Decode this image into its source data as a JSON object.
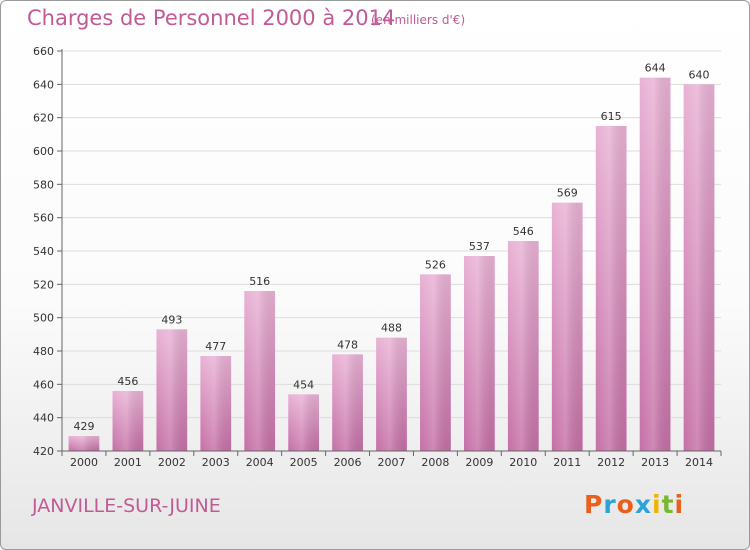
{
  "title": "Charges de Personnel 2000 à 2014",
  "subtitle": "(en milliers d'€)",
  "commune": "JANVILLE-SUR-JUINE",
  "logo": {
    "text": "Proxiti",
    "colors": [
      "#e8601c",
      "#2aa4d8",
      "#e8601c",
      "#2aa4d8",
      "#f0b400",
      "#7cb82f",
      "#e8601c"
    ]
  },
  "colors": {
    "accent": "#c15a95",
    "bar_light": "#e9b2d5",
    "bar_dark": "#c56fa6",
    "grid": "#dcdcdc",
    "axis_text": "#333333"
  },
  "chart_data": {
    "type": "bar",
    "categories": [
      "2000",
      "2001",
      "2002",
      "2003",
      "2004",
      "2005",
      "2006",
      "2007",
      "2008",
      "2009",
      "2010",
      "2011",
      "2012",
      "2013",
      "2014"
    ],
    "values": [
      429,
      456,
      493,
      477,
      516,
      454,
      478,
      488,
      526,
      537,
      546,
      569,
      615,
      644,
      640
    ],
    "data_labels": [
      "429",
      "456",
      "493",
      "477",
      "516",
      "454",
      "478",
      "488",
      "526",
      "537",
      "546",
      "569",
      "615",
      "644",
      "640"
    ],
    "yticks": [
      420,
      440,
      460,
      480,
      500,
      520,
      540,
      560,
      580,
      600,
      620,
      640,
      660
    ],
    "ylim": [
      420,
      660
    ],
    "grid": true
  }
}
